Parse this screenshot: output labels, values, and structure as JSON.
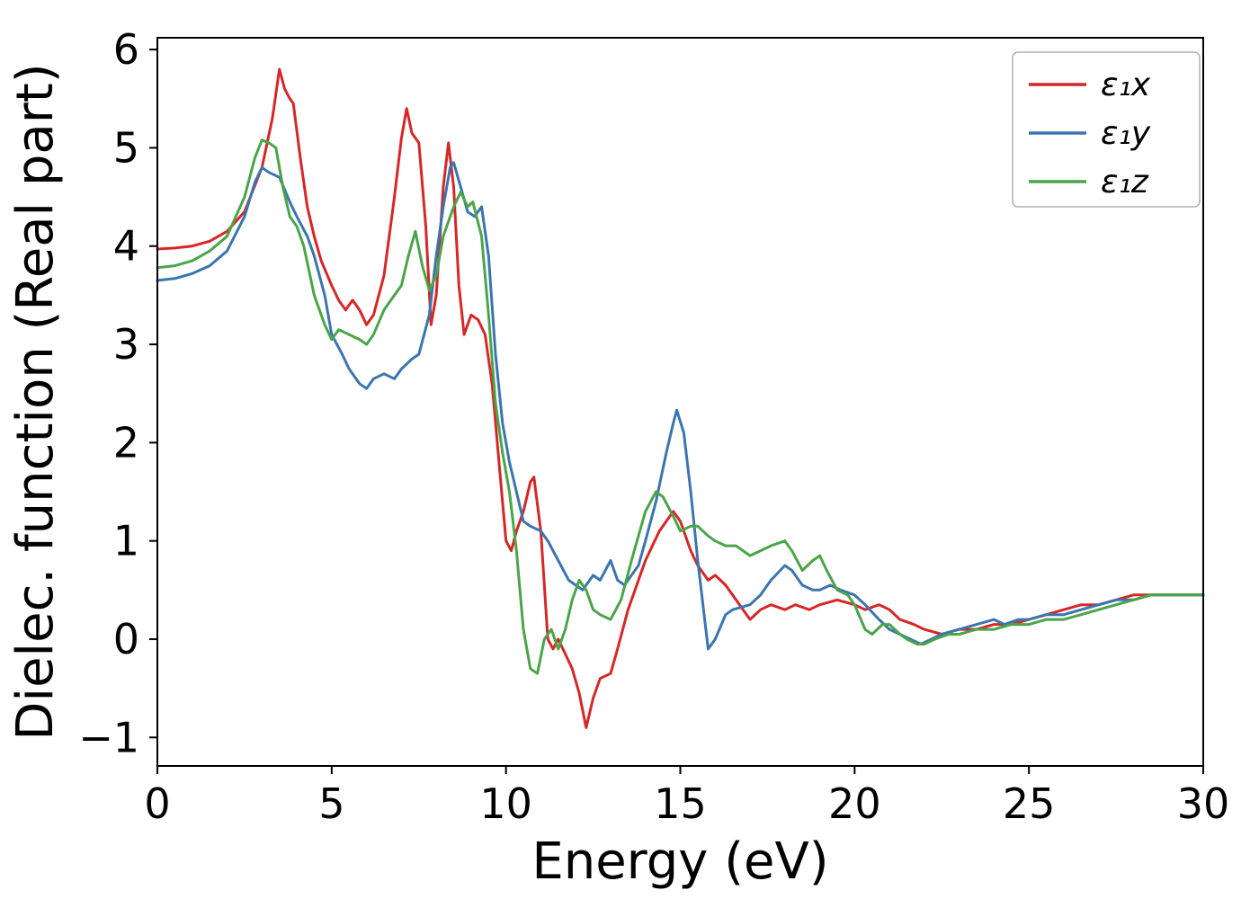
{
  "figure": {
    "background": "#ffffff",
    "axis_color": "#000000"
  },
  "chart_data": {
    "type": "line",
    "title": "",
    "xlabel": "Energy (eV)",
    "ylabel": "Dielec. function (Real part)",
    "xlim": [
      0,
      30
    ],
    "ylim": [
      -1.29,
      6.12
    ],
    "grid": false,
    "legend_position": "upper right",
    "x_ticks": [
      0,
      5,
      10,
      15,
      20,
      25,
      30
    ],
    "y_ticks": [
      -1,
      0,
      1,
      2,
      3,
      4,
      5,
      6
    ],
    "x_tick_labels": [
      "0",
      "5",
      "10",
      "15",
      "20",
      "25",
      "30"
    ],
    "y_tick_labels": [
      "−1",
      "0",
      "1",
      "2",
      "3",
      "4",
      "5",
      "6"
    ],
    "series": [
      {
        "id": "eps1x",
        "name": "ε₁x",
        "color": "#d62728",
        "points": [
          [
            0,
            3.97
          ],
          [
            0.5,
            3.98
          ],
          [
            1,
            4.0
          ],
          [
            1.5,
            4.05
          ],
          [
            2,
            4.15
          ],
          [
            2.5,
            4.35
          ],
          [
            3,
            4.8
          ],
          [
            3.3,
            5.3
          ],
          [
            3.5,
            5.8
          ],
          [
            3.65,
            5.6
          ],
          [
            3.8,
            5.5
          ],
          [
            3.9,
            5.45
          ],
          [
            4.1,
            4.9
          ],
          [
            4.3,
            4.4
          ],
          [
            4.5,
            4.1
          ],
          [
            4.7,
            3.85
          ],
          [
            5,
            3.6
          ],
          [
            5.2,
            3.45
          ],
          [
            5.4,
            3.35
          ],
          [
            5.6,
            3.45
          ],
          [
            5.8,
            3.35
          ],
          [
            6,
            3.2
          ],
          [
            6.2,
            3.3
          ],
          [
            6.5,
            3.7
          ],
          [
            6.8,
            4.5
          ],
          [
            7,
            5.1
          ],
          [
            7.15,
            5.4
          ],
          [
            7.3,
            5.15
          ],
          [
            7.5,
            5.05
          ],
          [
            7.7,
            4.2
          ],
          [
            7.85,
            3.2
          ],
          [
            8,
            3.5
          ],
          [
            8.2,
            4.6
          ],
          [
            8.35,
            5.05
          ],
          [
            8.5,
            4.6
          ],
          [
            8.65,
            3.6
          ],
          [
            8.8,
            3.1
          ],
          [
            9,
            3.3
          ],
          [
            9.2,
            3.25
          ],
          [
            9.4,
            3.1
          ],
          [
            9.6,
            2.6
          ],
          [
            9.8,
            1.8
          ],
          [
            10,
            1.0
          ],
          [
            10.15,
            0.9
          ],
          [
            10.3,
            1.1
          ],
          [
            10.5,
            1.3
          ],
          [
            10.7,
            1.6
          ],
          [
            10.8,
            1.65
          ],
          [
            11,
            1.1
          ],
          [
            11.2,
            0.0
          ],
          [
            11.35,
            -0.1
          ],
          [
            11.5,
            0.0
          ],
          [
            11.7,
            -0.15
          ],
          [
            11.9,
            -0.3
          ],
          [
            12.1,
            -0.55
          ],
          [
            12.3,
            -0.9
          ],
          [
            12.5,
            -0.6
          ],
          [
            12.7,
            -0.4
          ],
          [
            13,
            -0.35
          ],
          [
            13.2,
            -0.1
          ],
          [
            13.5,
            0.3
          ],
          [
            14,
            0.8
          ],
          [
            14.4,
            1.1
          ],
          [
            14.8,
            1.3
          ],
          [
            15,
            1.2
          ],
          [
            15.3,
            0.9
          ],
          [
            15.5,
            0.75
          ],
          [
            15.8,
            0.6
          ],
          [
            16,
            0.65
          ],
          [
            16.3,
            0.55
          ],
          [
            16.7,
            0.35
          ],
          [
            17,
            0.2
          ],
          [
            17.3,
            0.3
          ],
          [
            17.6,
            0.35
          ],
          [
            18,
            0.3
          ],
          [
            18.3,
            0.35
          ],
          [
            18.7,
            0.3
          ],
          [
            19,
            0.35
          ],
          [
            19.5,
            0.4
          ],
          [
            20,
            0.35
          ],
          [
            20.3,
            0.3
          ],
          [
            20.7,
            0.35
          ],
          [
            21,
            0.3
          ],
          [
            21.3,
            0.2
          ],
          [
            21.7,
            0.15
          ],
          [
            22,
            0.1
          ],
          [
            22.5,
            0.05
          ],
          [
            23,
            0.1
          ],
          [
            23.5,
            0.1
          ],
          [
            24,
            0.15
          ],
          [
            24.5,
            0.15
          ],
          [
            25,
            0.2
          ],
          [
            25.5,
            0.25
          ],
          [
            26,
            0.3
          ],
          [
            26.5,
            0.35
          ],
          [
            27,
            0.35
          ],
          [
            27.5,
            0.4
          ],
          [
            28,
            0.45
          ],
          [
            28.5,
            0.45
          ],
          [
            29,
            0.45
          ],
          [
            29.5,
            0.45
          ],
          [
            30,
            0.45
          ]
        ]
      },
      {
        "id": "eps1y",
        "name": "ε₁y",
        "color": "#3b75af",
        "points": [
          [
            0,
            3.65
          ],
          [
            0.5,
            3.67
          ],
          [
            1,
            3.72
          ],
          [
            1.5,
            3.8
          ],
          [
            2,
            3.95
          ],
          [
            2.5,
            4.3
          ],
          [
            2.8,
            4.65
          ],
          [
            3,
            4.8
          ],
          [
            3.2,
            4.75
          ],
          [
            3.5,
            4.7
          ],
          [
            3.8,
            4.45
          ],
          [
            4,
            4.3
          ],
          [
            4.3,
            4.1
          ],
          [
            4.5,
            3.9
          ],
          [
            4.8,
            3.5
          ],
          [
            5,
            3.1
          ],
          [
            5.3,
            2.9
          ],
          [
            5.5,
            2.75
          ],
          [
            5.8,
            2.6
          ],
          [
            6,
            2.55
          ],
          [
            6.2,
            2.65
          ],
          [
            6.5,
            2.7
          ],
          [
            6.8,
            2.65
          ],
          [
            7,
            2.75
          ],
          [
            7.3,
            2.85
          ],
          [
            7.5,
            2.9
          ],
          [
            7.8,
            3.3
          ],
          [
            8,
            3.9
          ],
          [
            8.2,
            4.4
          ],
          [
            8.4,
            4.8
          ],
          [
            8.5,
            4.85
          ],
          [
            8.7,
            4.6
          ],
          [
            8.9,
            4.35
          ],
          [
            9.1,
            4.3
          ],
          [
            9.3,
            4.4
          ],
          [
            9.5,
            3.9
          ],
          [
            9.7,
            2.9
          ],
          [
            9.9,
            2.2
          ],
          [
            10.1,
            1.8
          ],
          [
            10.3,
            1.5
          ],
          [
            10.5,
            1.2
          ],
          [
            10.7,
            1.15
          ],
          [
            11,
            1.1
          ],
          [
            11.2,
            1.0
          ],
          [
            11.5,
            0.8
          ],
          [
            11.8,
            0.6
          ],
          [
            12,
            0.55
          ],
          [
            12.2,
            0.5
          ],
          [
            12.5,
            0.65
          ],
          [
            12.7,
            0.6
          ],
          [
            13,
            0.8
          ],
          [
            13.2,
            0.6
          ],
          [
            13.4,
            0.55
          ],
          [
            13.6,
            0.65
          ],
          [
            13.8,
            0.75
          ],
          [
            14,
            1.0
          ],
          [
            14.3,
            1.4
          ],
          [
            14.6,
            1.9
          ],
          [
            14.8,
            2.2
          ],
          [
            14.9,
            2.33
          ],
          [
            15.1,
            2.1
          ],
          [
            15.3,
            1.5
          ],
          [
            15.5,
            0.8
          ],
          [
            15.7,
            0.2
          ],
          [
            15.8,
            -0.1
          ],
          [
            16,
            0.0
          ],
          [
            16.3,
            0.25
          ],
          [
            16.5,
            0.3
          ],
          [
            17,
            0.35
          ],
          [
            17.3,
            0.45
          ],
          [
            17.6,
            0.6
          ],
          [
            18,
            0.75
          ],
          [
            18.2,
            0.7
          ],
          [
            18.5,
            0.55
          ],
          [
            18.8,
            0.5
          ],
          [
            19,
            0.5
          ],
          [
            19.3,
            0.55
          ],
          [
            19.6,
            0.5
          ],
          [
            20,
            0.45
          ],
          [
            20.3,
            0.35
          ],
          [
            20.7,
            0.2
          ],
          [
            21,
            0.1
          ],
          [
            21.3,
            0.05
          ],
          [
            21.6,
            0.0
          ],
          [
            21.9,
            -0.05
          ],
          [
            22.2,
            0.0
          ],
          [
            22.5,
            0.05
          ],
          [
            23,
            0.1
          ],
          [
            23.5,
            0.15
          ],
          [
            24,
            0.2
          ],
          [
            24.3,
            0.15
          ],
          [
            24.7,
            0.2
          ],
          [
            25,
            0.2
          ],
          [
            25.5,
            0.25
          ],
          [
            26,
            0.25
          ],
          [
            26.5,
            0.3
          ],
          [
            27,
            0.35
          ],
          [
            27.5,
            0.4
          ],
          [
            28,
            0.4
          ],
          [
            28.5,
            0.45
          ],
          [
            29,
            0.45
          ],
          [
            29.5,
            0.45
          ],
          [
            30,
            0.45
          ]
        ]
      },
      {
        "id": "eps1z",
        "name": "ε₁z",
        "color": "#4aa54a",
        "points": [
          [
            0,
            3.78
          ],
          [
            0.5,
            3.8
          ],
          [
            1,
            3.85
          ],
          [
            1.5,
            3.95
          ],
          [
            2,
            4.1
          ],
          [
            2.5,
            4.5
          ],
          [
            2.8,
            4.9
          ],
          [
            3,
            5.08
          ],
          [
            3.2,
            5.05
          ],
          [
            3.4,
            5.0
          ],
          [
            3.6,
            4.6
          ],
          [
            3.8,
            4.3
          ],
          [
            4,
            4.2
          ],
          [
            4.2,
            4.0
          ],
          [
            4.5,
            3.5
          ],
          [
            4.8,
            3.2
          ],
          [
            5,
            3.05
          ],
          [
            5.2,
            3.15
          ],
          [
            5.5,
            3.1
          ],
          [
            5.8,
            3.05
          ],
          [
            6,
            3.0
          ],
          [
            6.2,
            3.1
          ],
          [
            6.5,
            3.35
          ],
          [
            6.8,
            3.5
          ],
          [
            7,
            3.6
          ],
          [
            7.2,
            3.9
          ],
          [
            7.4,
            4.15
          ],
          [
            7.6,
            3.8
          ],
          [
            7.8,
            3.55
          ],
          [
            8,
            3.7
          ],
          [
            8.2,
            4.1
          ],
          [
            8.5,
            4.4
          ],
          [
            8.7,
            4.55
          ],
          [
            8.9,
            4.4
          ],
          [
            9.05,
            4.45
          ],
          [
            9.3,
            4.1
          ],
          [
            9.5,
            3.3
          ],
          [
            9.7,
            2.4
          ],
          [
            9.9,
            1.9
          ],
          [
            10.1,
            1.5
          ],
          [
            10.3,
            0.9
          ],
          [
            10.5,
            0.1
          ],
          [
            10.7,
            -0.3
          ],
          [
            10.9,
            -0.35
          ],
          [
            11.1,
            0.0
          ],
          [
            11.3,
            0.1
          ],
          [
            11.5,
            -0.1
          ],
          [
            11.7,
            0.1
          ],
          [
            11.9,
            0.4
          ],
          [
            12.1,
            0.6
          ],
          [
            12.3,
            0.5
          ],
          [
            12.5,
            0.3
          ],
          [
            12.7,
            0.25
          ],
          [
            13,
            0.2
          ],
          [
            13.3,
            0.4
          ],
          [
            13.6,
            0.8
          ],
          [
            14,
            1.3
          ],
          [
            14.3,
            1.5
          ],
          [
            14.5,
            1.45
          ],
          [
            14.8,
            1.25
          ],
          [
            15,
            1.1
          ],
          [
            15.3,
            1.15
          ],
          [
            15.5,
            1.15
          ],
          [
            15.8,
            1.05
          ],
          [
            16,
            1.0
          ],
          [
            16.3,
            0.95
          ],
          [
            16.6,
            0.95
          ],
          [
            17,
            0.85
          ],
          [
            17.3,
            0.9
          ],
          [
            17.6,
            0.95
          ],
          [
            18,
            1.0
          ],
          [
            18.2,
            0.9
          ],
          [
            18.5,
            0.7
          ],
          [
            18.8,
            0.8
          ],
          [
            19,
            0.85
          ],
          [
            19.2,
            0.7
          ],
          [
            19.5,
            0.5
          ],
          [
            19.8,
            0.45
          ],
          [
            20,
            0.35
          ],
          [
            20.3,
            0.1
          ],
          [
            20.5,
            0.05
          ],
          [
            20.8,
            0.15
          ],
          [
            21,
            0.15
          ],
          [
            21.3,
            0.05
          ],
          [
            21.5,
            0.0
          ],
          [
            21.8,
            -0.05
          ],
          [
            22,
            -0.05
          ],
          [
            22.3,
            0.0
          ],
          [
            22.7,
            0.05
          ],
          [
            23,
            0.05
          ],
          [
            23.5,
            0.1
          ],
          [
            24,
            0.1
          ],
          [
            24.5,
            0.15
          ],
          [
            25,
            0.15
          ],
          [
            25.5,
            0.2
          ],
          [
            26,
            0.2
          ],
          [
            26.5,
            0.25
          ],
          [
            27,
            0.3
          ],
          [
            27.5,
            0.35
          ],
          [
            28,
            0.4
          ],
          [
            28.5,
            0.45
          ],
          [
            29,
            0.45
          ],
          [
            29.5,
            0.45
          ],
          [
            30,
            0.45
          ]
        ]
      }
    ]
  }
}
